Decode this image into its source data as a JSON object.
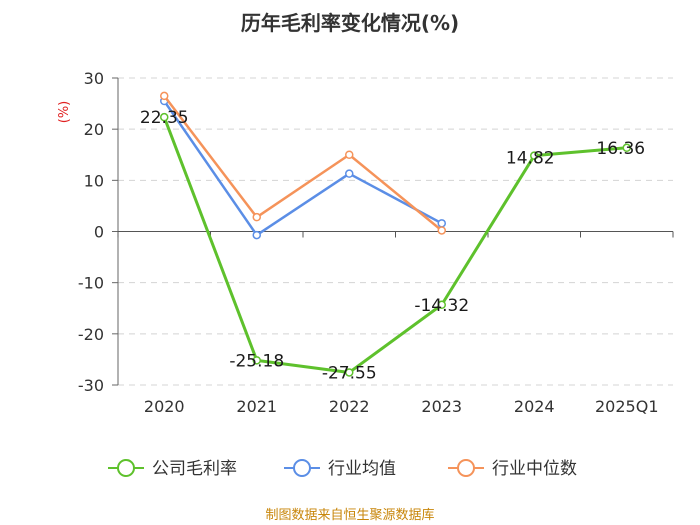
{
  "chart_data": {
    "type": "line",
    "title": "历年毛利率变化情况(%)",
    "ylabel": "(%)",
    "categories": [
      "2020",
      "2021",
      "2022",
      "2023",
      "2024",
      "2025Q1"
    ],
    "ylim": [
      -30,
      30
    ],
    "yticks": [
      "30",
      "20",
      "10",
      "0",
      "-10",
      "-20",
      "-30"
    ],
    "series": [
      {
        "name": "公司毛利率",
        "color": "#5ec12c",
        "values": [
          22.35,
          -25.18,
          -27.55,
          -14.32,
          14.82,
          16.36
        ],
        "labels": [
          "22.35",
          "-25.18",
          "-27.55",
          "-14.32",
          "14.82",
          "16.36"
        ]
      },
      {
        "name": "行业均值",
        "color": "#5b8ee6",
        "values": [
          25.5,
          -0.7,
          11.3,
          1.6,
          null,
          null
        ]
      },
      {
        "name": "行业中位数",
        "color": "#f5935a",
        "values": [
          26.5,
          2.8,
          15.0,
          0.2,
          null,
          null
        ]
      }
    ]
  },
  "source": "制图数据来自恒生聚源数据库"
}
